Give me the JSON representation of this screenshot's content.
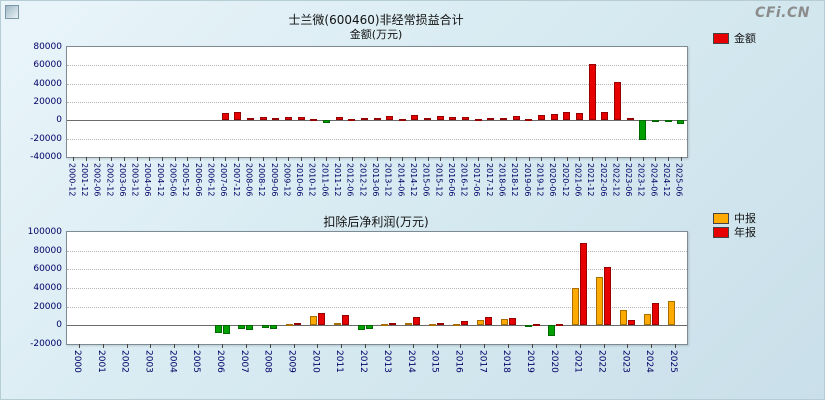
{
  "page": {
    "logo": "CFi.CN"
  },
  "chart_data": [
    {
      "type": "bar",
      "title": "士兰微(600460)非经常损益合计",
      "subtitle": "金额(万元)",
      "legend": [
        {
          "label": "金额",
          "color": "#e60000"
        }
      ],
      "legend_position": "top-right",
      "grid": true,
      "ylim": [
        -40000,
        80000
      ],
      "yticks": [
        80000,
        60000,
        40000,
        20000,
        0,
        -20000,
        -40000
      ],
      "negative_color": "#00a000",
      "categories": [
        "2000-12",
        "2001-12",
        "2002-06",
        "2002-12",
        "2003-06",
        "2003-12",
        "2004-06",
        "2004-12",
        "2005-06",
        "2005-12",
        "2006-06",
        "2006-12",
        "2007-06",
        "2007-12",
        "2008-06",
        "2008-12",
        "2009-06",
        "2009-12",
        "2010-06",
        "2010-12",
        "2011-06",
        "2011-12",
        "2012-06",
        "2012-12",
        "2013-06",
        "2013-12",
        "2014-06",
        "2014-12",
        "2015-06",
        "2015-12",
        "2016-06",
        "2016-12",
        "2017-06",
        "2017-12",
        "2018-06",
        "2018-12",
        "2019-06",
        "2019-12",
        "2020-06",
        "2020-12",
        "2021-06",
        "2021-12",
        "2022-06",
        "2022-12",
        "2023-06",
        "2023-12",
        "2024-06",
        "2024-12",
        "2025-06"
      ],
      "values": [
        null,
        null,
        null,
        null,
        null,
        null,
        null,
        null,
        null,
        null,
        null,
        null,
        8500,
        9000,
        3000,
        3500,
        2500,
        4000,
        4000,
        2000,
        -3000,
        4000,
        2000,
        3000,
        2500,
        5000,
        2000,
        6000,
        3000,
        4500,
        3500,
        4000,
        2000,
        3000,
        2500,
        4500,
        2000,
        5500,
        6500,
        9500,
        8000,
        62000,
        9000,
        42000,
        3000,
        -22000,
        -1500,
        -2000,
        -4000
      ]
    },
    {
      "type": "bar",
      "title": "扣除后净利润(万元)",
      "legend": [
        {
          "label": "中报",
          "color": "#ffaa00"
        },
        {
          "label": "年报",
          "color": "#e60000"
        }
      ],
      "legend_position": "top-right",
      "grid": true,
      "ylim": [
        -20000,
        100000
      ],
      "yticks": [
        100000,
        80000,
        60000,
        40000,
        20000,
        0,
        -20000
      ],
      "negative_color": "#00a000",
      "categories": [
        "2000",
        "2001",
        "2002",
        "2003",
        "2004",
        "2005",
        "2006",
        "2007",
        "2008",
        "2009",
        "2010",
        "2011",
        "2012",
        "2013",
        "2014",
        "2015",
        "2016",
        "2017",
        "2018",
        "2019",
        "2020",
        "2021",
        "2022",
        "2023",
        "2024",
        "2025"
      ],
      "series": [
        {
          "name": "中报",
          "values": [
            null,
            null,
            null,
            null,
            null,
            null,
            -8000,
            -4000,
            -3000,
            800,
            10000,
            2500,
            -5000,
            1500,
            3000,
            1500,
            1000,
            6000,
            7000,
            -2000,
            -11000,
            40000,
            52000,
            16000,
            12000,
            26000
          ]
        },
        {
          "name": "年报",
          "values": [
            null,
            null,
            null,
            null,
            null,
            null,
            -9000,
            -5000,
            -4000,
            2000,
            13000,
            11000,
            -4000,
            3000,
            9000,
            3000,
            5000,
            9000,
            8000,
            1500,
            1000,
            88000,
            62000,
            6000,
            24000,
            null
          ]
        }
      ]
    }
  ]
}
